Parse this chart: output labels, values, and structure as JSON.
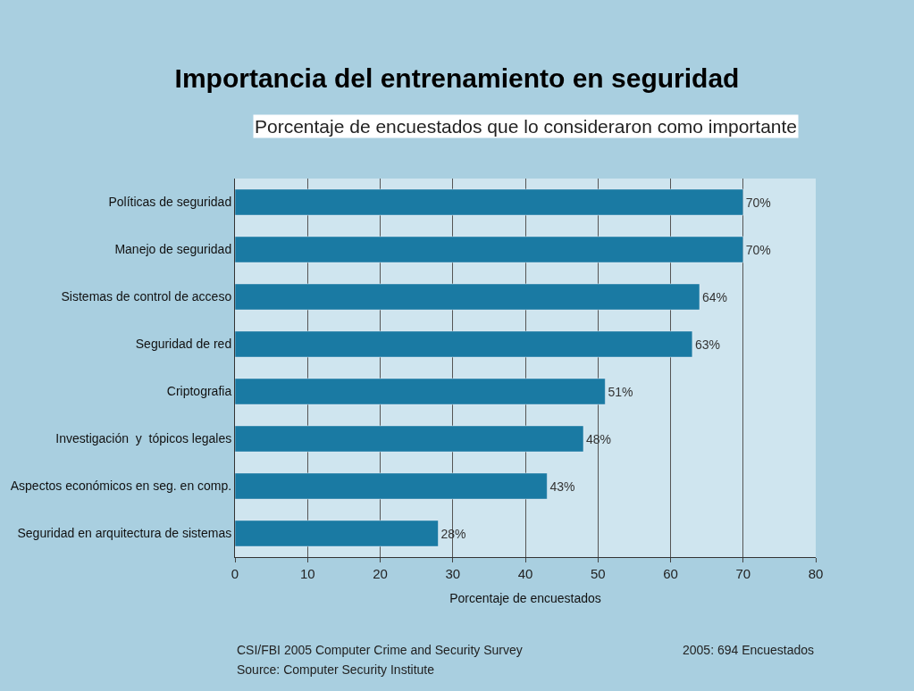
{
  "chart_data": {
    "type": "bar",
    "orientation": "horizontal",
    "title": "Importancia del entrenamiento en seguridad",
    "subtitle": "Porcentaje de encuestados que lo consideraron como importante",
    "xlabel": "Porcentaje de encuestados",
    "categories": [
      "Políticas de seguridad",
      "Manejo de seguridad",
      "Sistemas de control de acceso",
      "Seguridad de red",
      "Criptografia",
      "Investigación  y  tópicos legales",
      "Aspectos económicos en seg. en comp.",
      "Seguridad en arquitectura de sistemas"
    ],
    "values": [
      70,
      70,
      64,
      63,
      51,
      48,
      43,
      28
    ],
    "value_labels": [
      "70%",
      "70%",
      "64%",
      "63%",
      "51%",
      "48%",
      "43%",
      "28%"
    ],
    "color": "#1a7aa3",
    "xlim": [
      0,
      80
    ],
    "xticks": [
      0,
      10,
      20,
      30,
      40,
      50,
      60,
      70,
      80
    ],
    "grid": "x",
    "annotations": [
      "CSI/FBI 2005 Computer Crime and Security Survey",
      "Source: Computer Security Institute",
      "2005: 694 Encuestados"
    ]
  }
}
